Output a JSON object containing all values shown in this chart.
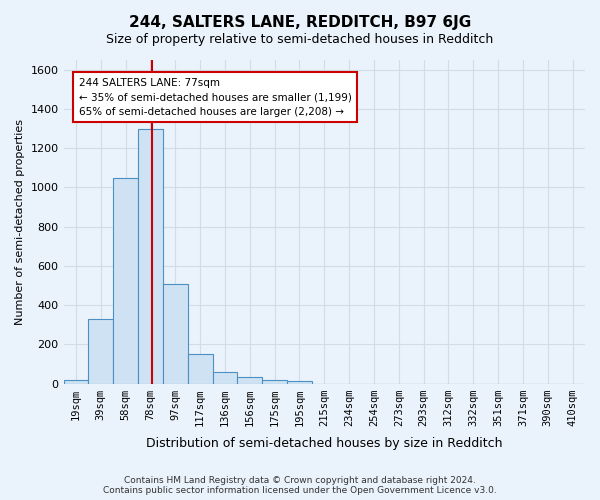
{
  "title": "244, SALTERS LANE, REDDITCH, B97 6JG",
  "subtitle": "Size of property relative to semi-detached houses in Redditch",
  "xlabel": "Distribution of semi-detached houses by size in Redditch",
  "ylabel": "Number of semi-detached properties",
  "footer_line1": "Contains HM Land Registry data © Crown copyright and database right 2024.",
  "footer_line2": "Contains public sector information licensed under the Open Government Licence v3.0.",
  "property_size": 77,
  "property_label": "244 SALTERS LANE: 77sqm",
  "pct_smaller": 35,
  "pct_larger": 65,
  "count_smaller": 1199,
  "count_larger": 2208,
  "bin_labels": [
    "19sqm",
    "39sqm",
    "58sqm",
    "78sqm",
    "97sqm",
    "117sqm",
    "136sqm",
    "156sqm",
    "175sqm",
    "195sqm",
    "215sqm",
    "234sqm",
    "254sqm",
    "273sqm",
    "293sqm",
    "312sqm",
    "332sqm",
    "351sqm",
    "371sqm",
    "390sqm",
    "410sqm"
  ],
  "bin_left_edges": [
    9.5,
    28.5,
    47.5,
    66.5,
    85.5,
    104.5,
    123.5,
    142.5,
    161.5,
    180.5,
    199.5,
    218.5,
    237.5,
    256.5,
    275.5,
    294.5,
    313.5,
    332.5,
    351.5,
    370.5,
    389.5
  ],
  "bin_width": 19,
  "bar_values": [
    20,
    330,
    1050,
    1300,
    510,
    150,
    60,
    35,
    20,
    15,
    0,
    0,
    0,
    0,
    0,
    0,
    0,
    0,
    0,
    0,
    0
  ],
  "bar_color": "#cfe2f3",
  "bar_edge_color": "#4a90c4",
  "grid_color": "#d0dce8",
  "background_color": "#eaf2fb",
  "annotation_box_color": "#ffffff",
  "annotation_box_edge_color": "#cc0000",
  "vline_color": "#cc0000",
  "ylim": [
    0,
    1650
  ],
  "yticks": [
    0,
    200,
    400,
    600,
    800,
    1000,
    1200,
    1400,
    1600
  ]
}
